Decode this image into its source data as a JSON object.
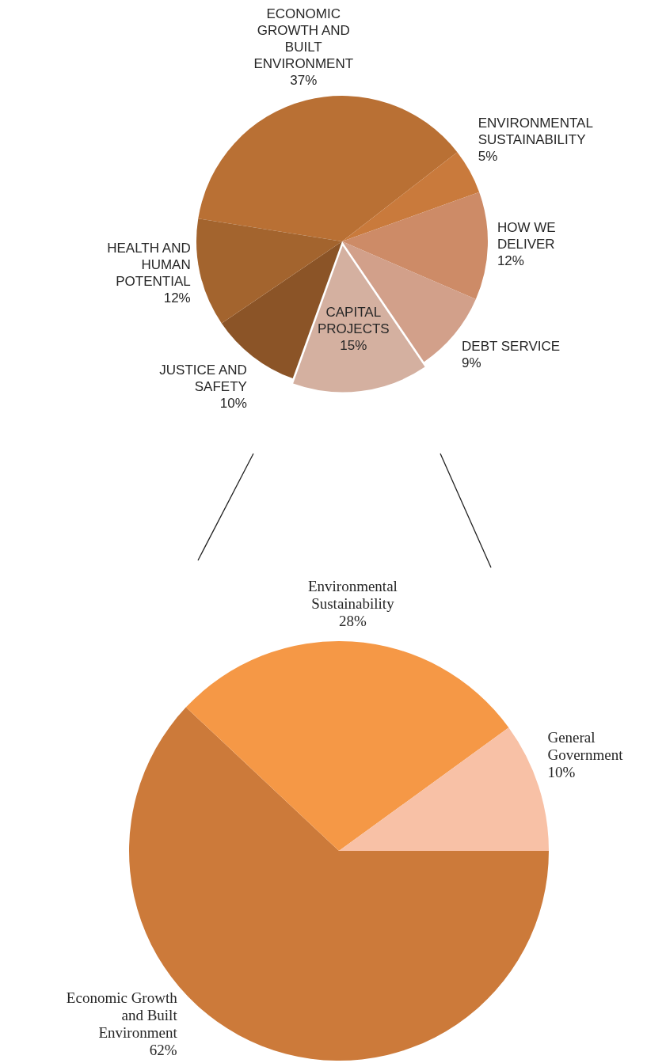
{
  "chart_data": [
    {
      "type": "pie",
      "categories": [
        "ECONOMIC GROWTH AND BUILT ENVIRONMENT",
        "ENVIRONMENTAL SUSTAINABILITY",
        "HOW WE DELIVER",
        "DEBT SERVICE",
        "CAPITAL PROJECTS",
        "JUSTICE AND SAFETY",
        "HEALTH AND HUMAN POTENTIAL"
      ],
      "values": [
        37,
        5,
        12,
        9,
        15,
        10,
        12
      ],
      "value_labels": [
        "37%",
        "5%",
        "12%",
        "9%",
        "15%",
        "10%",
        "12%"
      ],
      "colors": [
        "#b97034",
        "#c97a3c",
        "#cd8b67",
        "#d2a08a",
        "#d4b0a0",
        "#8b5427",
        "#a3642e"
      ]
    },
    {
      "type": "pie",
      "categories": [
        "Economic Growth and Built Environment",
        "Environmental Sustainability",
        "General Government"
      ],
      "values": [
        62,
        28,
        10
      ],
      "value_labels": [
        "62%",
        "28%",
        "10%"
      ],
      "colors": [
        "#cc7a3a",
        "#f59846",
        "#f8c1a6"
      ]
    }
  ]
}
